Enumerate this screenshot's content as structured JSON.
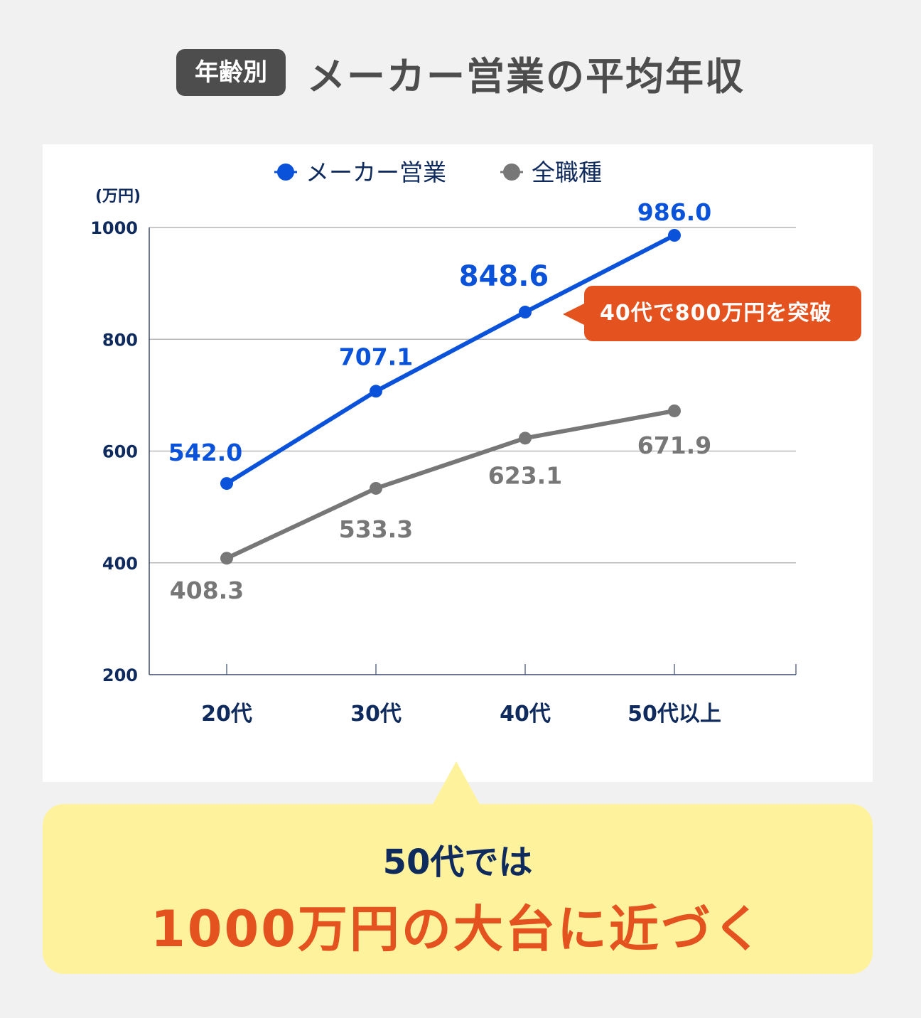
{
  "header": {
    "badge": "年齢別",
    "title": "メーカー営業の平均年収"
  },
  "legend": [
    {
      "label": "メーカー営業",
      "color": "#0a52d9"
    },
    {
      "label": "全職種",
      "color": "#777777"
    }
  ],
  "callout": {
    "text": "40代で800万円を突破"
  },
  "bubble": {
    "line1": "50代では",
    "line2": "1000万円の大台に近づく"
  },
  "chart_data": {
    "type": "line",
    "title": "年齢別 メーカー営業の平均年収",
    "categories": [
      "20代",
      "30代",
      "40代",
      "50代以上"
    ],
    "series": [
      {
        "name": "メーカー営業",
        "values": [
          542.0,
          707.1,
          848.6,
          986.0
        ],
        "color": "#0a52d9"
      },
      {
        "name": "全職種",
        "values": [
          408.3,
          533.3,
          623.1,
          671.9
        ],
        "color": "#777777"
      }
    ],
    "xlabel": "",
    "ylabel": "(万円)",
    "ylim": [
      200,
      1000
    ],
    "yticks": [
      200,
      400,
      600,
      800,
      1000
    ],
    "grid": true,
    "legend_position": "top",
    "annotations": [
      "40代で800万円を突破",
      "50代では 1000万円の大台に近づく"
    ]
  }
}
